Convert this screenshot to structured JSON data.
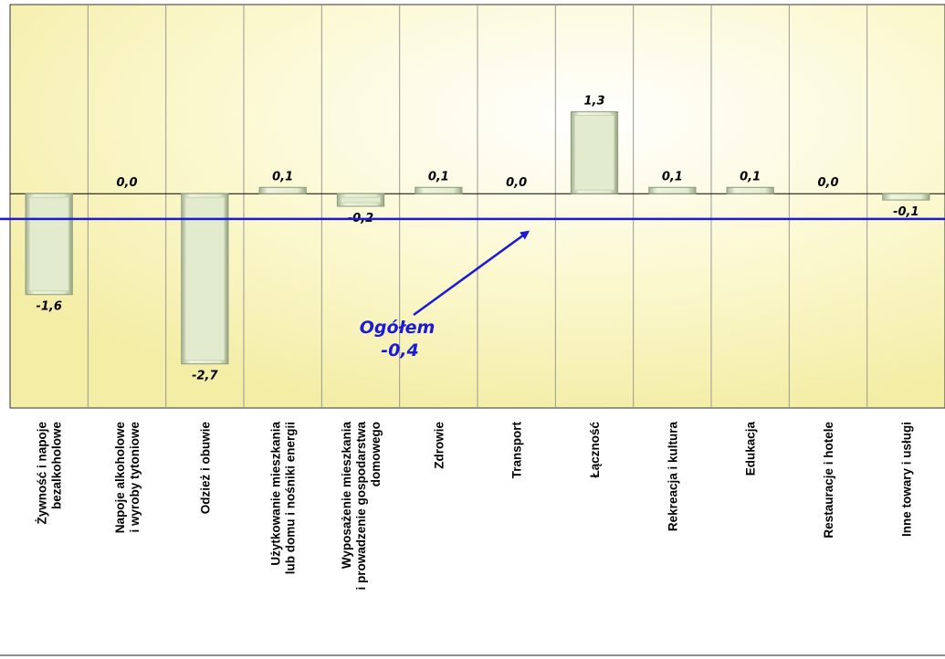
{
  "chart_data": {
    "type": "bar",
    "categories": [
      [
        "Żywność i napoje",
        "bezalkoholowe"
      ],
      [
        "Napoje alkoholowe",
        "i wyroby tytoniowe"
      ],
      [
        "Odzież i obuwie"
      ],
      [
        "Użytkowanie  mieszkania",
        "lub domu i nośniki energii"
      ],
      [
        "Wyposażenie  mieszkania",
        "i prowadzenie gospodarstwa",
        "domowego"
      ],
      [
        "Zdrowie"
      ],
      [
        "Transport"
      ],
      [
        "Łączność"
      ],
      [
        "Rekreacja  i kultura"
      ],
      [
        "Edukacja"
      ],
      [
        "Restauracje  i hotele"
      ],
      [
        "Inne towary  i usługi"
      ]
    ],
    "values": [
      -1.6,
      0.0,
      -2.7,
      0.1,
      -0.2,
      0.1,
      0.0,
      1.3,
      0.1,
      0.1,
      0.0,
      -0.1
    ],
    "value_labels": [
      "-1,6",
      "0,0",
      "-2,7",
      "0,1",
      "-0,2",
      "0,1",
      "0,0",
      "1,3",
      "0,1",
      "0,1",
      "0,0",
      "-0,1"
    ],
    "ylim": [
      -3.4,
      3.0
    ],
    "grid": true,
    "reference_line": {
      "value": -0.4,
      "label_line1": "Ogółem",
      "label_line2": "-0,4",
      "color": "#1a1ad8"
    },
    "colors": {
      "plot_bg": "#fdfbd2",
      "bar_fill": "#e3ebcf",
      "bar_edge": "#8a9a7a",
      "grid": "#999999"
    }
  }
}
